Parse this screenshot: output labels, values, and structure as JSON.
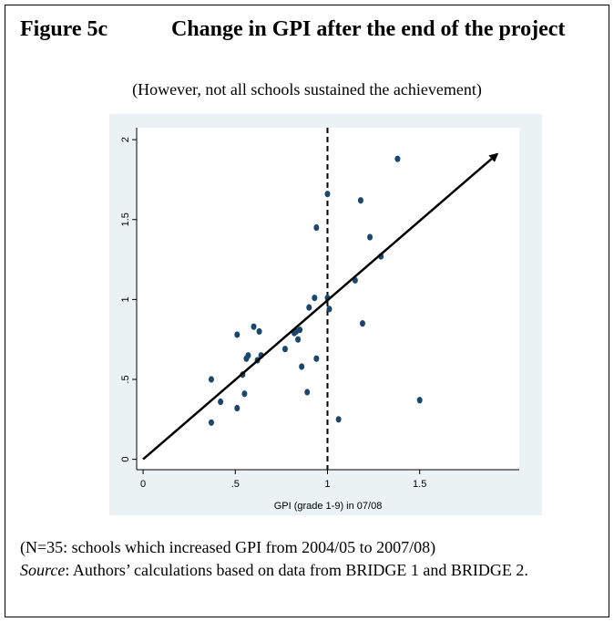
{
  "chart_data": {
    "type": "scatter",
    "figure_label": "Figure 5c",
    "title": "Change in GPI after the end of the project",
    "subtitle": "(However, not all schools sustained the achievement)",
    "x_label": "GPI (grade 1-9) in 07/08",
    "note": "(N=35: schools which increased GPI from 2004/05 to 2007/08)",
    "source_label": "Source",
    "source_text": ": Authors’ calculations based on data from BRIDGE 1 and BRIDGE 2.",
    "x": [
      0.37,
      0.37,
      0.42,
      0.51,
      0.51,
      0.54,
      0.55,
      0.56,
      0.6,
      0.62,
      0.63,
      0.64,
      0.77,
      0.82,
      0.83,
      0.84,
      0.85,
      0.86,
      0.89,
      0.9,
      0.93,
      0.94,
      0.94,
      1.0,
      1.0,
      1.01,
      1.06,
      1.15,
      1.18,
      1.19,
      1.23,
      1.29,
      1.38,
      1.5,
      0.57
    ],
    "values": [
      0.23,
      0.5,
      0.36,
      0.32,
      0.78,
      0.53,
      0.41,
      0.63,
      0.83,
      0.62,
      0.8,
      0.65,
      0.69,
      0.79,
      0.8,
      0.75,
      0.81,
      0.58,
      0.42,
      0.95,
      1.01,
      1.45,
      0.63,
      1.01,
      1.66,
      0.94,
      0.25,
      1.12,
      1.62,
      0.85,
      1.39,
      1.27,
      1.88,
      0.37,
      0.65
    ],
    "color": "#1a476f",
    "xlim": [
      -0.035,
      2.04
    ],
    "ylim": [
      -0.065,
      2.075
    ],
    "xticks": [
      0,
      {
        "value": 0.5,
        "label": ".5"
      },
      1,
      1.5
    ],
    "yticks": [
      0,
      {
        "value": 0.5,
        "label": ".5"
      },
      1,
      1.5,
      2
    ],
    "vline": 1,
    "arrow": {
      "x": [
        0,
        1.92
      ],
      "y": [
        0,
        1.91
      ]
    }
  }
}
